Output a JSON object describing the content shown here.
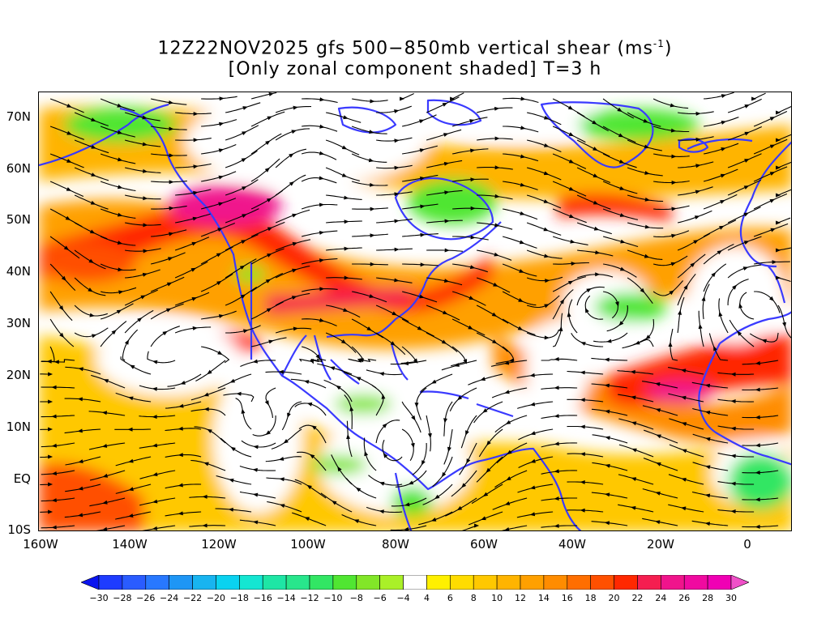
{
  "title": {
    "line1_main": "12Z22NOV2025 gfs 500−850mb vertical shear (ms",
    "line1_sup": "-1",
    "line1_end": ")",
    "line2": "[Only zonal component shaded] T=3 h"
  },
  "axes": {
    "lat_labels": [
      "70N",
      "60N",
      "50N",
      "40N",
      "30N",
      "20N",
      "10N",
      "EQ",
      "10S"
    ],
    "lat_values": [
      70,
      60,
      50,
      40,
      30,
      20,
      10,
      0,
      -10
    ],
    "lon_labels": [
      "160W",
      "140W",
      "120W",
      "100W",
      "80W",
      "60W",
      "40W",
      "20W",
      "0"
    ],
    "lon_values": [
      -160,
      -140,
      -120,
      -100,
      -80,
      -60,
      -40,
      -20,
      0
    ],
    "lat_range": [
      -10,
      75
    ],
    "lon_range": [
      -160,
      10
    ]
  },
  "colorbar": {
    "labels": [
      "-30",
      "-28",
      "-26",
      "-24",
      "-22",
      "-20",
      "-18",
      "-16",
      "-14",
      "-12",
      "-10",
      "-8",
      "-6",
      "-4",
      "4",
      "6",
      "8",
      "10",
      "12",
      "14",
      "16",
      "18",
      "20",
      "22",
      "24",
      "26",
      "28",
      "30"
    ],
    "colors": [
      "#0a14f0",
      "#1e3cff",
      "#2a5cff",
      "#2878ff",
      "#1e96f5",
      "#18b4f0",
      "#0ad2f0",
      "#14e6d2",
      "#1ee6a5",
      "#28e68c",
      "#32e664",
      "#50e632",
      "#82e628",
      "#aaf028",
      "#ffffff",
      "#fff000",
      "#ffdc00",
      "#ffc800",
      "#ffb400",
      "#ffa000",
      "#ff8c00",
      "#ff6e00",
      "#ff5000",
      "#ff2800",
      "#f51e50",
      "#f0148c",
      "#f00aa0",
      "#f000b4",
      "#f050c8"
    ]
  },
  "colors": {
    "coast": "#3a3aff",
    "streamline": "#000000"
  }
}
